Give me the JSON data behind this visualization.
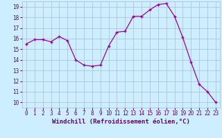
{
  "x": [
    0,
    1,
    2,
    3,
    4,
    5,
    6,
    7,
    8,
    9,
    10,
    11,
    12,
    13,
    14,
    15,
    16,
    17,
    18,
    19,
    20,
    21,
    22,
    23
  ],
  "y": [
    15.5,
    15.9,
    15.9,
    15.7,
    16.2,
    15.8,
    14.0,
    13.5,
    13.4,
    13.5,
    15.3,
    16.6,
    16.7,
    18.1,
    18.1,
    18.7,
    19.2,
    19.3,
    18.1,
    16.1,
    13.8,
    11.7,
    11.0,
    10.0
  ],
  "line_color": "#990099",
  "marker": "+",
  "bg_color": "#cceeff",
  "grid_color": "#aabbcc",
  "xlabel": "Windchill (Refroidissement éolien,°C)",
  "xlabel_color": "#660066",
  "tick_color": "#660066",
  "xlim": [
    -0.5,
    23.5
  ],
  "ylim": [
    9.5,
    19.5
  ],
  "yticks": [
    10,
    11,
    12,
    13,
    14,
    15,
    16,
    17,
    18,
    19
  ],
  "xticks": [
    0,
    1,
    2,
    3,
    4,
    5,
    6,
    7,
    8,
    9,
    10,
    11,
    12,
    13,
    14,
    15,
    16,
    17,
    18,
    19,
    20,
    21,
    22,
    23
  ],
  "xlabel_fontsize": 6.5,
  "tick_fontsize": 5.5,
  "linewidth": 0.9,
  "markersize": 3.5,
  "markeredgewidth": 1.0
}
